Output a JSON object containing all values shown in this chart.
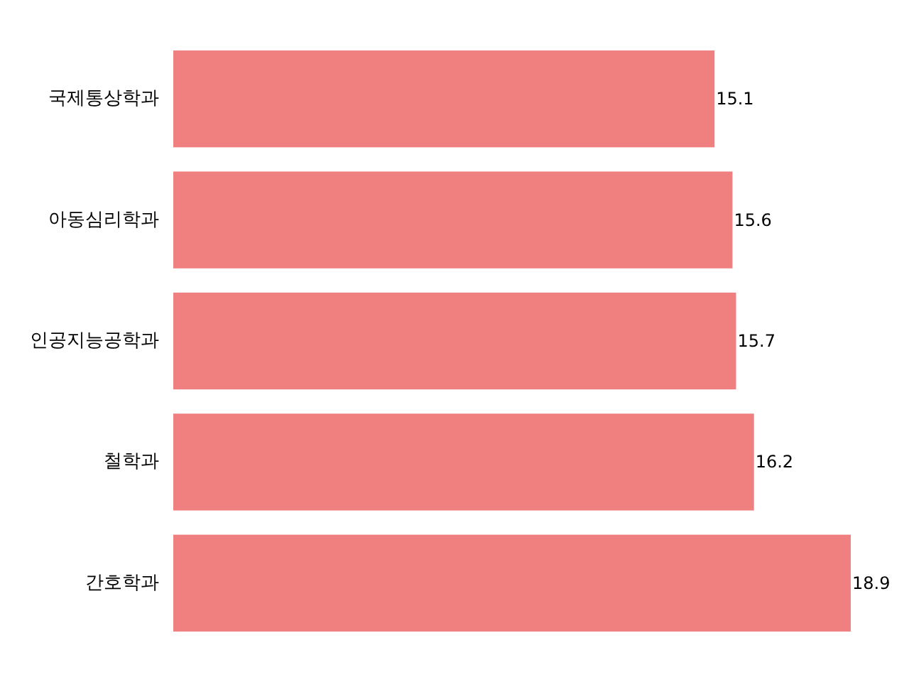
{
  "chart_data": {
    "type": "bar",
    "orientation": "horizontal",
    "categories": [
      "국제통상학과",
      "아동심리학과",
      "인공지능공학과",
      "철학과",
      "간호학과"
    ],
    "values": [
      15.1,
      15.6,
      15.7,
      16.2,
      18.9
    ],
    "color": "#f08080",
    "data_labels": true
  }
}
